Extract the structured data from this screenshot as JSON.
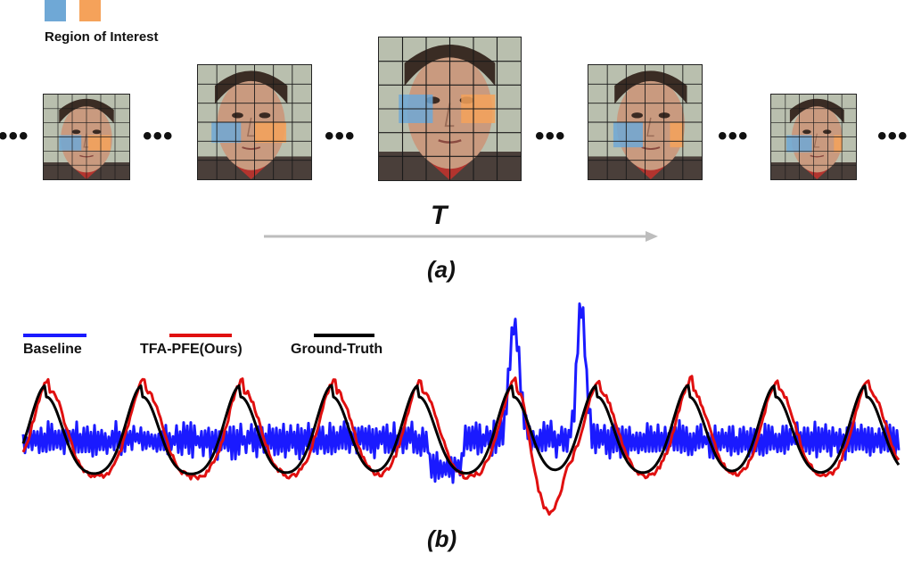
{
  "legend_top": {
    "label": "Region of Interest",
    "colors": [
      "#6fa8d6",
      "#f5a25a"
    ]
  },
  "sequence": {
    "ellipsis": "•••",
    "axis_label": "T",
    "panel_label": "(a)",
    "frame_count": 5
  },
  "signals": {
    "panel_label": "(b)",
    "legend": [
      {
        "name": "Baseline",
        "color": "#1a1aff"
      },
      {
        "name": "TFA-PFE(Ours)",
        "color": "#e01010"
      },
      {
        "name": "Ground-Truth",
        "color": "#000000"
      }
    ]
  },
  "icons": {
    "face_frames": "face-thumbnail-icon",
    "time_arrow": "arrow-right-icon"
  }
}
